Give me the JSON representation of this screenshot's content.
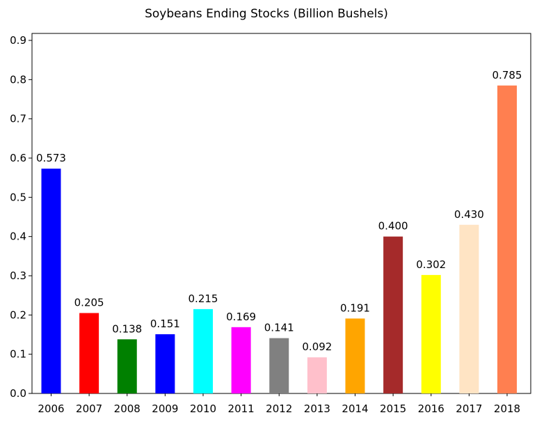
{
  "chart_data": {
    "type": "bar",
    "title": "Soybeans Ending Stocks (Billion Bushels)",
    "xlabel": "",
    "ylabel": "",
    "categories": [
      "2006",
      "2007",
      "2008",
      "2009",
      "2010",
      "2011",
      "2012",
      "2013",
      "2014",
      "2015",
      "2016",
      "2017",
      "2018"
    ],
    "values": [
      0.573,
      0.205,
      0.138,
      0.151,
      0.215,
      0.169,
      0.141,
      0.092,
      0.191,
      0.4,
      0.302,
      0.43,
      0.785
    ],
    "value_labels": [
      "0.573",
      "0.205",
      "0.138",
      "0.151",
      "0.215",
      "0.169",
      "0.141",
      "0.092",
      "0.191",
      "0.400",
      "0.302",
      "0.430",
      "0.785"
    ],
    "colors": [
      "#0000ff",
      "#ff0000",
      "#008000",
      "#0000ff",
      "#00ffff",
      "#ff00ff",
      "#808080",
      "#ffc0cb",
      "#ffa500",
      "#a52a2a",
      "#ffff00",
      "#ffe4c4",
      "#ff7f50"
    ],
    "ylim": [
      0,
      0.9
    ],
    "yticks": [
      "0.0",
      "0.1",
      "0.2",
      "0.3",
      "0.4",
      "0.5",
      "0.6",
      "0.7",
      "0.8",
      "0.9"
    ],
    "grid": false,
    "legend": false
  }
}
